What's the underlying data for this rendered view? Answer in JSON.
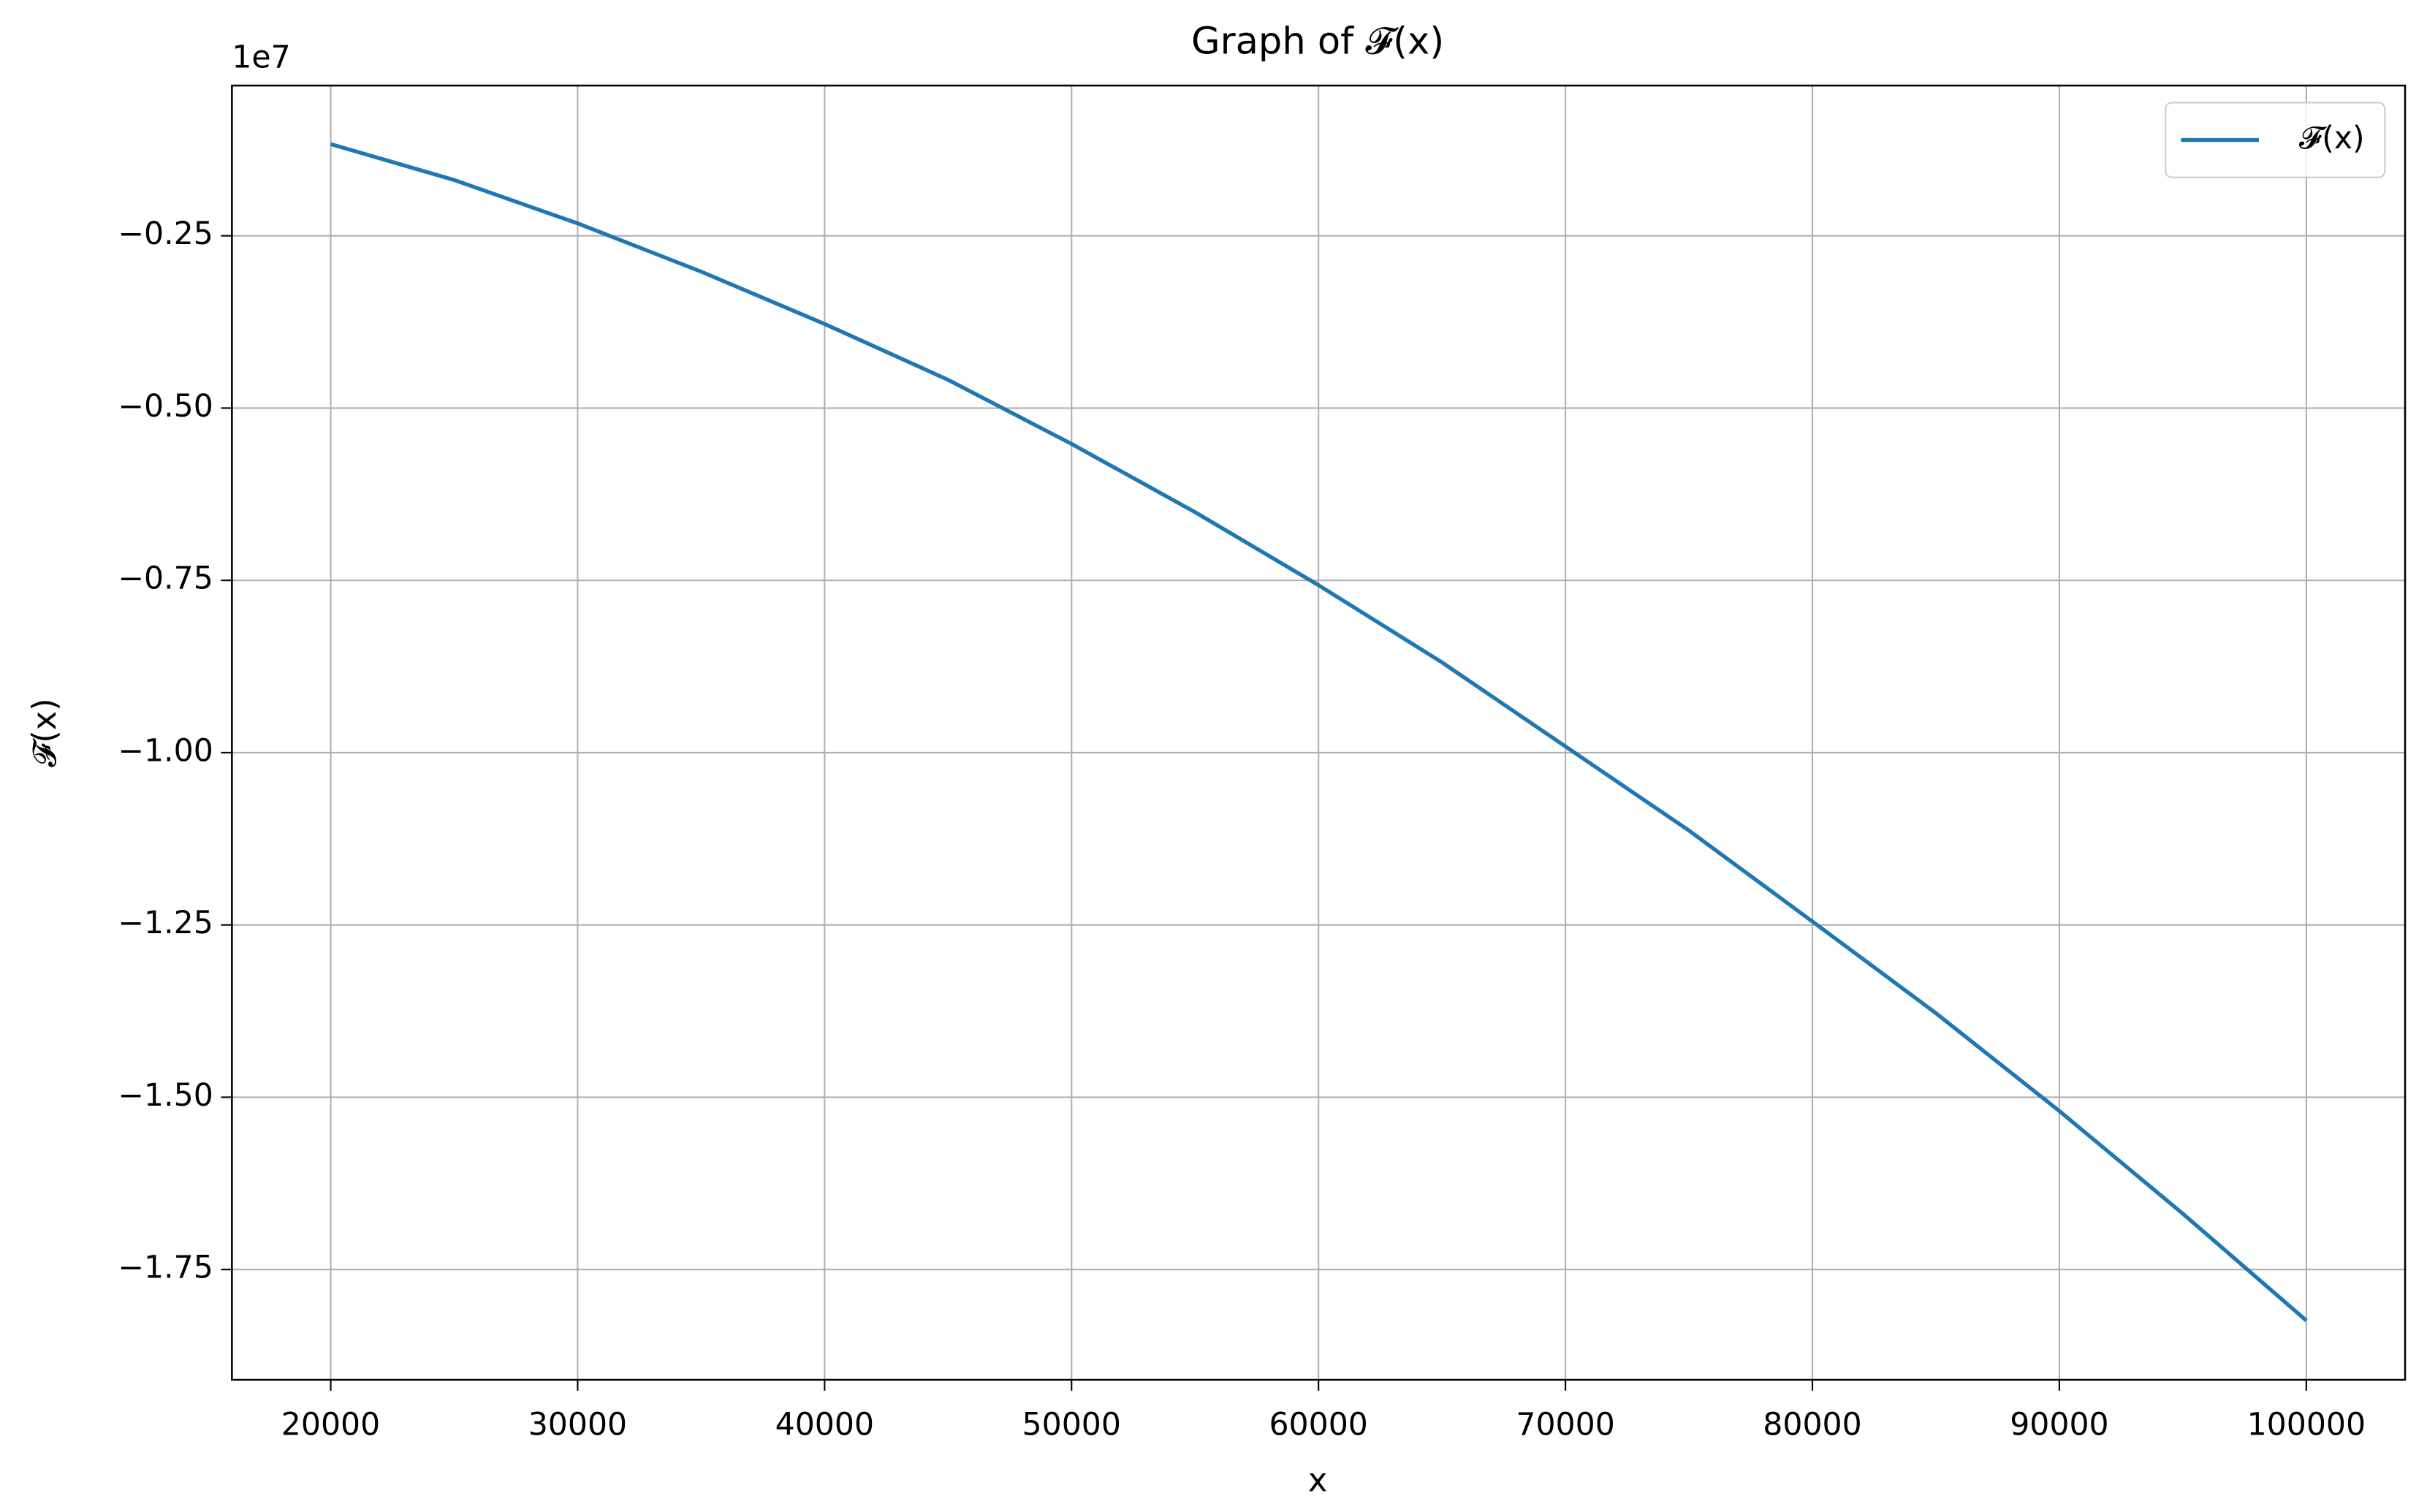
{
  "chart_data": {
    "type": "line",
    "title": "Graph of 𝓕(x)",
    "x_label": "x",
    "y_label": "𝓕(x)",
    "y_offset_label": "1e7",
    "x": [
      20000,
      25000,
      30000,
      35000,
      40000,
      45000,
      50000,
      55000,
      60000,
      65000,
      70000,
      75000,
      80000,
      85000,
      90000,
      95000,
      100000
    ],
    "series": [
      {
        "name": "𝓕(x)",
        "color": "#1f77b4",
        "values": [
          -0.117,
          -0.169,
          -0.232,
          -0.302,
          -0.378,
          -0.459,
          -0.552,
          -0.651,
          -0.757,
          -0.869,
          -0.991,
          -1.113,
          -1.245,
          -1.378,
          -1.52,
          -1.669,
          -1.824
        ]
      }
    ],
    "xlim": [
      16000,
      104000
    ],
    "ylim": [
      -1.91,
      -0.032
    ],
    "xticks": [
      20000,
      30000,
      40000,
      50000,
      60000,
      70000,
      80000,
      90000,
      100000
    ],
    "yticks": [
      {
        "value": -0.25,
        "label": "−0.25"
      },
      {
        "value": -0.5,
        "label": "−0.50"
      },
      {
        "value": -0.75,
        "label": "−0.75"
      },
      {
        "value": -1.0,
        "label": "−1.00"
      },
      {
        "value": -1.25,
        "label": "−1.25"
      },
      {
        "value": -1.5,
        "label": "−1.50"
      },
      {
        "value": -1.75,
        "label": "−1.75"
      }
    ],
    "grid": true,
    "legend": "upper right"
  }
}
